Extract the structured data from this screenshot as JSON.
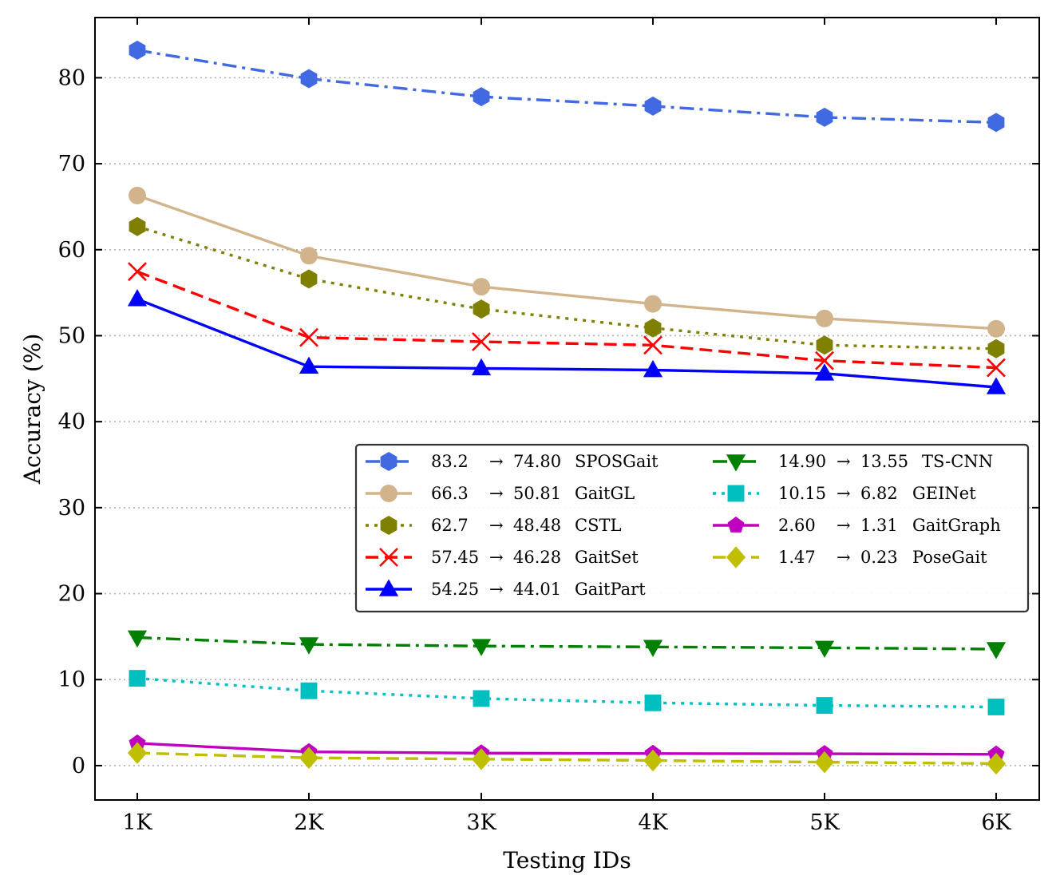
{
  "chart_data": {
    "type": "line",
    "title": "",
    "xlabel": "Testing IDs",
    "ylabel": "Accuracy (%)",
    "categories": [
      "1K",
      "2K",
      "3K",
      "4K",
      "5K",
      "6K"
    ],
    "ylim": [
      -4,
      87
    ],
    "yticks": [
      0,
      10,
      20,
      30,
      40,
      50,
      60,
      70,
      80
    ],
    "grid": "horizontal dotted",
    "legend_position": "center-right",
    "series": [
      {
        "name": "SPOSGait",
        "legend_first": "83.2",
        "legend_last": "74.80",
        "color": "#4169E1",
        "marker": "hexagon",
        "linestyle": "dashdot",
        "values": [
          83.2,
          79.9,
          77.8,
          76.7,
          75.4,
          74.8
        ]
      },
      {
        "name": "GaitGL",
        "legend_first": "66.3",
        "legend_last": "50.81",
        "color": "#D2B48C",
        "marker": "circle",
        "linestyle": "solid",
        "values": [
          66.3,
          59.3,
          55.7,
          53.7,
          52.0,
          50.81
        ]
      },
      {
        "name": "CSTL",
        "legend_first": "62.7",
        "legend_last": "48.48",
        "color": "#808000",
        "marker": "hexagon",
        "linestyle": "dotted",
        "values": [
          62.7,
          56.6,
          53.1,
          50.9,
          48.9,
          48.48
        ]
      },
      {
        "name": "GaitSet",
        "legend_first": "57.45",
        "legend_last": "46.28",
        "color": "#FF0000",
        "marker": "x",
        "linestyle": "dashed",
        "values": [
          57.45,
          49.8,
          49.3,
          48.9,
          47.1,
          46.28
        ]
      },
      {
        "name": "GaitPart",
        "legend_first": "54.25",
        "legend_last": "44.01",
        "color": "#0000FF",
        "marker": "triangle-up",
        "linestyle": "solid",
        "values": [
          54.25,
          46.4,
          46.2,
          46.0,
          45.6,
          44.01
        ]
      },
      {
        "name": "TS-CNN",
        "legend_first": "14.90",
        "legend_last": "13.55",
        "color": "#008000",
        "marker": "triangle-down",
        "linestyle": "dashdot",
        "values": [
          14.9,
          14.1,
          13.9,
          13.8,
          13.7,
          13.55
        ]
      },
      {
        "name": "GEINet",
        "legend_first": "10.15",
        "legend_last": "6.82",
        "color": "#00BFBF",
        "marker": "square",
        "linestyle": "dotted",
        "values": [
          10.15,
          8.7,
          7.8,
          7.3,
          7.0,
          6.82
        ]
      },
      {
        "name": "GaitGraph",
        "legend_first": "2.60",
        "legend_last": "1.31",
        "color": "#BF00BF",
        "marker": "pentagon",
        "linestyle": "solid",
        "values": [
          2.6,
          1.6,
          1.45,
          1.4,
          1.38,
          1.31
        ]
      },
      {
        "name": "PoseGait",
        "legend_first": "1.47",
        "legend_last": "0.23",
        "color": "#BFBF00",
        "marker": "diamond",
        "linestyle": "dashed",
        "values": [
          1.47,
          0.9,
          0.75,
          0.6,
          0.4,
          0.23
        ]
      }
    ]
  }
}
